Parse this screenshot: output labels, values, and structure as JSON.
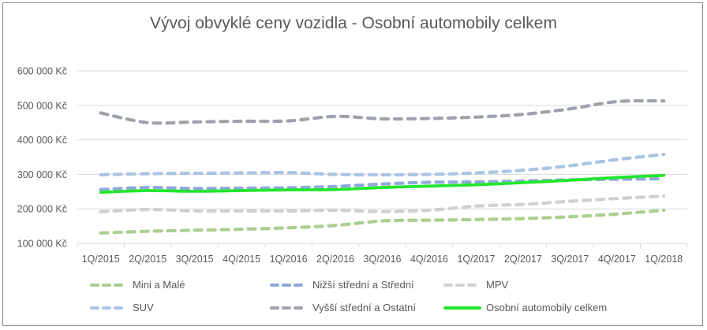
{
  "chart_data": {
    "type": "line",
    "title": "Vývoj obvyklé ceny vozidla - Osobní automobily celkem",
    "xlabel": "",
    "ylabel": "",
    "ylim": [
      100000,
      600000
    ],
    "yticks": [
      "100 000 Kč",
      "200 000 Kč",
      "300 000 Kč",
      "400 000 Kč",
      "500 000 Kč",
      "600 000 Kč"
    ],
    "ytick_values": [
      100000,
      200000,
      300000,
      400000,
      500000,
      600000
    ],
    "grid": true,
    "legend_position": "bottom",
    "categories": [
      "1Q/2015",
      "2Q/2015",
      "3Q/2015",
      "4Q/2015",
      "1Q/2016",
      "2Q/2016",
      "3Q/2016",
      "4Q/2016",
      "1Q/2017",
      "2Q/2017",
      "3Q/2017",
      "4Q/2017",
      "1Q/2018"
    ],
    "series": [
      {
        "name": "Mini a Malé",
        "color": "#a9d08e",
        "style": "dashed",
        "values": [
          130000,
          135000,
          138000,
          141000,
          145000,
          152000,
          165000,
          167000,
          169000,
          172000,
          177000,
          185000,
          196000
        ]
      },
      {
        "name": "Nižší střední a Střední",
        "color": "#8eaadb",
        "style": "dashed",
        "values": [
          256000,
          262000,
          259000,
          260000,
          261000,
          265000,
          272000,
          277000,
          278000,
          281000,
          284000,
          286000,
          287000
        ]
      },
      {
        "name": "MPV",
        "color": "#d0d0d0",
        "style": "dashed",
        "values": [
          192000,
          198000,
          194000,
          194000,
          194000,
          196000,
          192000,
          196000,
          208000,
          213000,
          222000,
          230000,
          237000
        ]
      },
      {
        "name": "SUV",
        "color": "#a9c4e4",
        "style": "dashed",
        "values": [
          299000,
          302000,
          303000,
          304000,
          305000,
          300000,
          299000,
          300000,
          304000,
          312000,
          325000,
          343000,
          358000
        ]
      },
      {
        "name": "Vyšší střední a Ostatní",
        "color": "#9ea3ab",
        "style": "dashed",
        "values": [
          478000,
          450000,
          452000,
          454000,
          455000,
          468000,
          461000,
          462000,
          466000,
          474000,
          490000,
          511000,
          513000
        ]
      },
      {
        "name": "Osobní automobily celkem",
        "color": "#22e62e",
        "style": "solid",
        "values": [
          248000,
          253000,
          251000,
          253000,
          255000,
          256000,
          262000,
          266000,
          270000,
          276000,
          283000,
          291000,
          297000
        ]
      }
    ]
  }
}
